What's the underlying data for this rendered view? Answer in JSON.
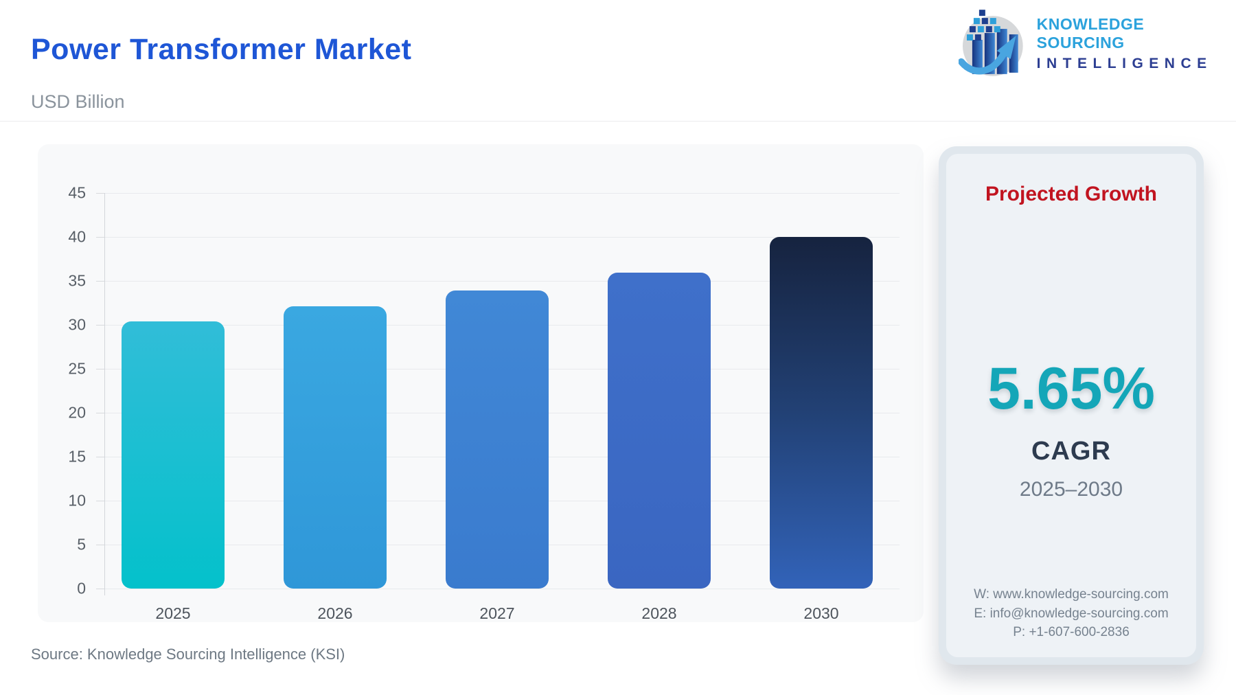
{
  "header": {
    "title": "Power Transformer Market",
    "subtitle": "USD Billion",
    "logo": {
      "line1": "KNOWLEDGE SOURCING",
      "line2": "INTELLIGENCE",
      "icon": "bar-chart-globe-arrow-icon"
    }
  },
  "chart_data": {
    "type": "bar",
    "title": "Power Transformer Market",
    "ylabel": "USD Billion",
    "xlabel": "",
    "categories": [
      "2025",
      "2026",
      "2027",
      "2028",
      "2030"
    ],
    "values": [
      30.4,
      32.1,
      33.9,
      35.9,
      40.0
    ],
    "ylim": [
      0,
      45
    ],
    "ytick_step": 5,
    "grid": true,
    "legend": "none",
    "bar_gradients": [
      [
        "#31bdd8",
        "#04c1cb"
      ],
      [
        "#3aa8e1",
        "#2f97d8"
      ],
      [
        "#4188d6",
        "#3a7bce"
      ],
      [
        "#3f70ca",
        "#3a66c1"
      ],
      [
        "#16233f",
        "#224175",
        "#3263b9"
      ]
    ]
  },
  "side_panel": {
    "heading": "Projected Growth",
    "cagr_value": "5.65%",
    "cagr_label": "CAGR",
    "period": "2025–2030",
    "contact": {
      "website": "W: www.knowledge-sourcing.com",
      "email": "E: info@knowledge-sourcing.com",
      "phone": "P: +1-607-600-2836"
    }
  },
  "footer": {
    "source": "Source: Knowledge Sourcing Intelligence (KSI)"
  },
  "colors": {
    "title_blue": "#1e56d6",
    "heading_red": "#c11420",
    "cagr_teal": "#14a6b8",
    "cagr_navy": "#2d3b4f",
    "panel_bg": "#eef2f6",
    "panel_frame": "#e0e7ed",
    "chart_card_bg": "#f8f9fa",
    "gridline": "#e8eaed",
    "logo_light_blue": "#2ba2dc",
    "logo_dark_blue": "#2c3e92"
  }
}
